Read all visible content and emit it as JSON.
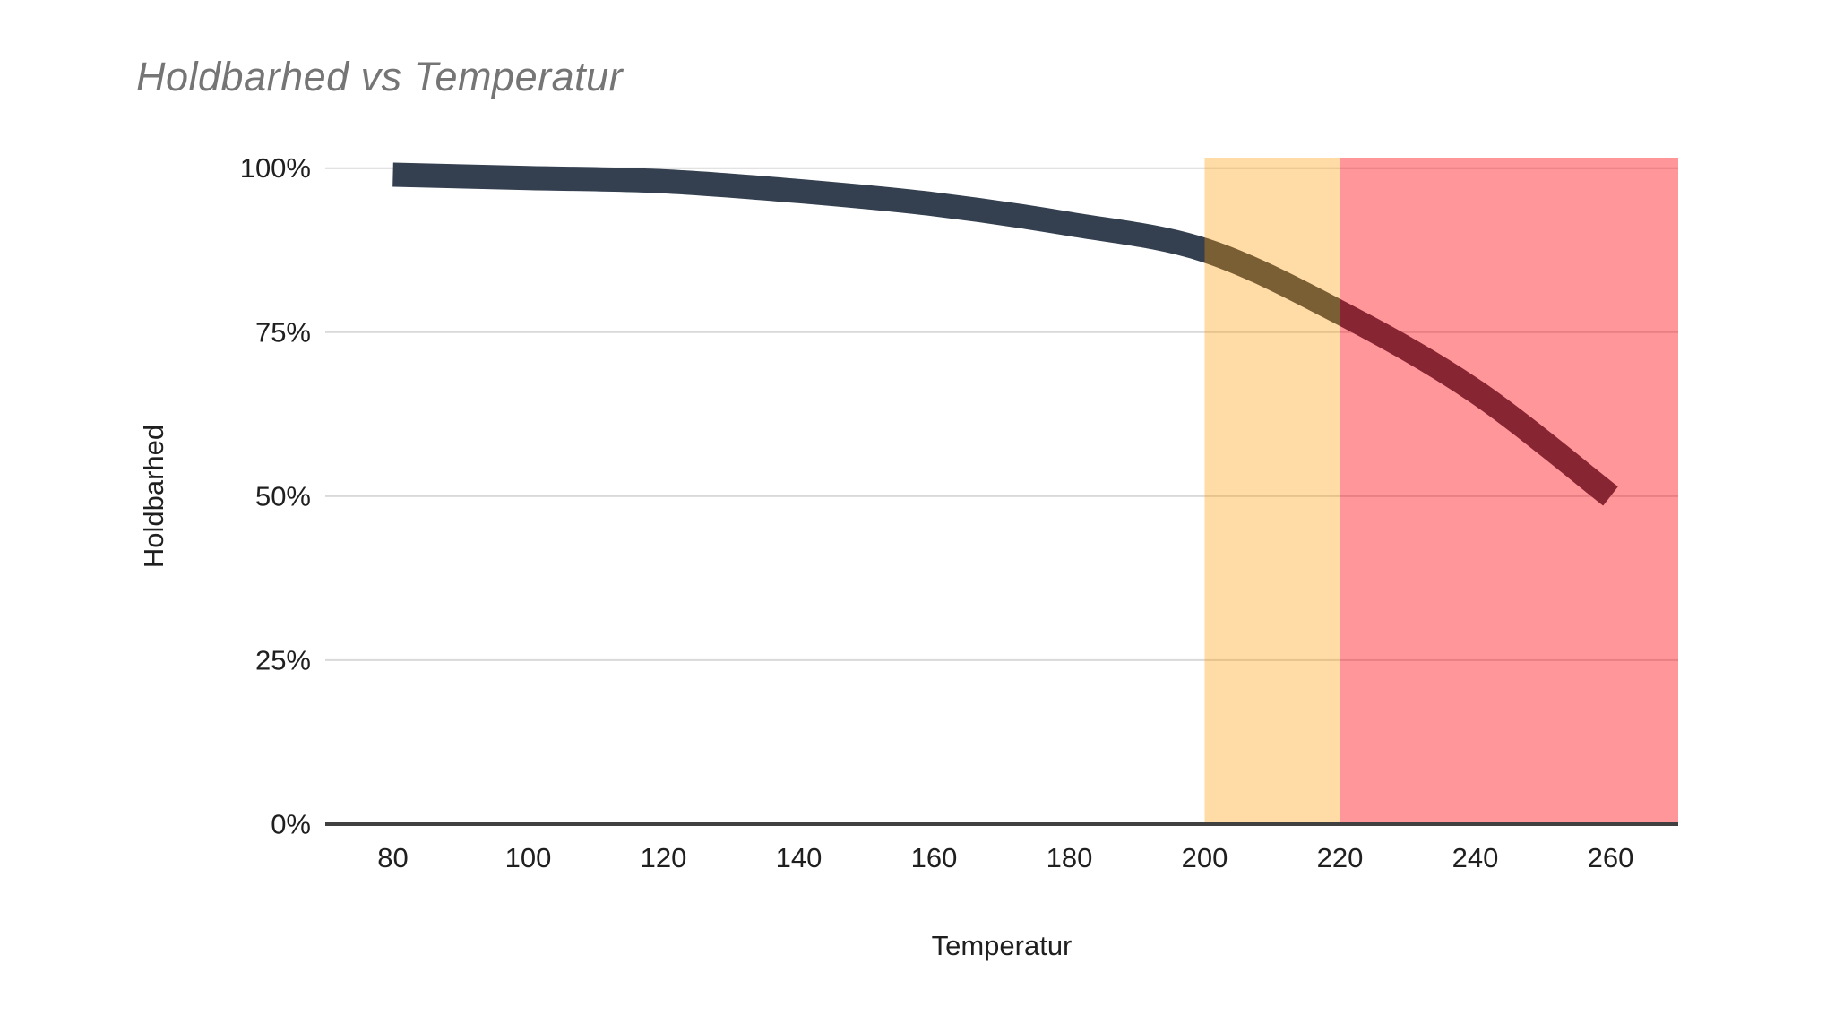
{
  "chart": {
    "title": "Holdbarhed vs Temperatur"
  },
  "chart_data": {
    "type": "line",
    "title": "Holdbarhed vs Temperatur",
    "xlabel": "Temperatur",
    "ylabel": "Holdbarhed",
    "x": [
      80,
      100,
      120,
      140,
      160,
      180,
      200,
      220,
      240,
      260
    ],
    "series": [
      {
        "name": "Holdbarhed",
        "values": [
          99,
          98.5,
          98,
          96.5,
          94.5,
          91.5,
          87.5,
          78,
          66,
          50
        ]
      }
    ],
    "x_tick_labels": [
      "80",
      "100",
      "120",
      "140",
      "160",
      "180",
      "200",
      "220",
      "240",
      "260"
    ],
    "y_ticks": [
      {
        "value": 0,
        "label": "0%"
      },
      {
        "value": 25,
        "label": "25%"
      },
      {
        "value": 50,
        "label": "50%"
      },
      {
        "value": 75,
        "label": "75%"
      },
      {
        "value": 100,
        "label": "100%"
      }
    ],
    "xlim": [
      70,
      270
    ],
    "ylim": [
      0,
      101.6
    ],
    "grid": "horizontal",
    "legend": "none",
    "smooth": true,
    "bands": [
      {
        "name": "warning-zone",
        "from": 200,
        "to": 220,
        "color": "rgba(255,153,0,0.35)"
      },
      {
        "name": "danger-zone",
        "from": 220,
        "to": 270,
        "color": "rgba(255,0,10,0.41)"
      }
    ],
    "colors": {
      "line": "#344050",
      "grid": "#d9d9d9",
      "axis": "#404040",
      "tick_text": "#1f1f1f",
      "axis_title_text": "#1f1f1f",
      "title_text": "#757575"
    },
    "line_width": 27
  }
}
